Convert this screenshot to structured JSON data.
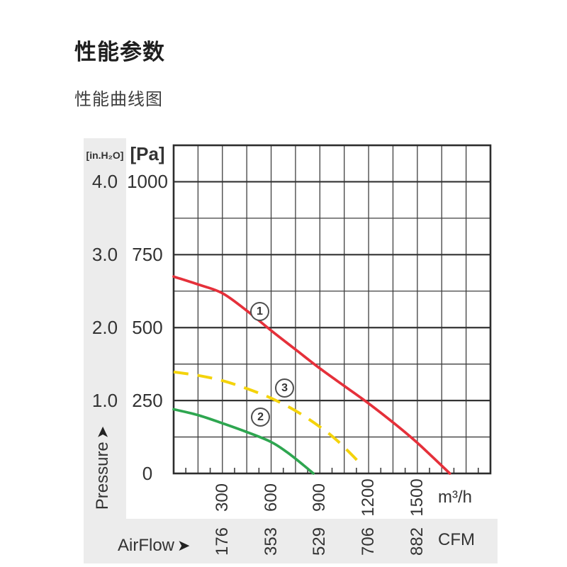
{
  "page": {
    "title": "性能参数",
    "subtitle": "性能曲线图"
  },
  "icons": {
    "right_arrow": "➤"
  },
  "chart_data": {
    "type": "line",
    "title": "性能曲线图",
    "grid": true,
    "x_axis": {
      "label": "AirFlow",
      "unit_primary": "m³/h",
      "unit_secondary": "CFM",
      "range": [
        0,
        1950
      ],
      "grid_step": 150,
      "ticks_primary": [
        "300",
        "600",
        "900",
        "1200",
        "1500"
      ],
      "ticks_primary_values": [
        300,
        600,
        900,
        1200,
        1500
      ],
      "ticks_secondary": [
        "176",
        "353",
        "529",
        "706",
        "882"
      ],
      "ticks_secondary_values": [
        176,
        353,
        529,
        706,
        882
      ]
    },
    "y_axis": {
      "label": "Pressure",
      "unit_primary": "[Pa]",
      "unit_secondary": "[in.H₂O]",
      "range": [
        0,
        1125
      ],
      "grid_step": 125,
      "ticks_primary": [
        "1000",
        "750",
        "500",
        "250",
        "0"
      ],
      "ticks_primary_values": [
        1000,
        750,
        500,
        250,
        0
      ],
      "ticks_secondary": [
        "4.0",
        "3.0",
        "2.0",
        "1.0"
      ],
      "ticks_secondary_values": [
        4.0,
        3.0,
        2.0,
        1.0
      ]
    },
    "series": [
      {
        "name": "1",
        "color": "#e5303a",
        "style": "solid",
        "points": [
          [
            0,
            675
          ],
          [
            150,
            648
          ],
          [
            300,
            618
          ],
          [
            450,
            558
          ],
          [
            600,
            490
          ],
          [
            750,
            425
          ],
          [
            900,
            360
          ],
          [
            1050,
            300
          ],
          [
            1200,
            240
          ],
          [
            1350,
            175
          ],
          [
            1500,
            105
          ],
          [
            1700,
            0
          ]
        ],
        "label_pos": [
          530,
          555
        ]
      },
      {
        "name": "2",
        "color": "#2ea650",
        "style": "solid",
        "points": [
          [
            0,
            220
          ],
          [
            150,
            200
          ],
          [
            300,
            172
          ],
          [
            450,
            142
          ],
          [
            600,
            108
          ],
          [
            700,
            72
          ],
          [
            800,
            28
          ],
          [
            860,
            0
          ]
        ],
        "label_pos": [
          535,
          192
        ]
      },
      {
        "name": "3",
        "color": "#f4d30b",
        "style": "dashed",
        "points": [
          [
            0,
            348
          ],
          [
            150,
            336
          ],
          [
            300,
            318
          ],
          [
            450,
            291
          ],
          [
            600,
            258
          ],
          [
            750,
            215
          ],
          [
            900,
            160
          ],
          [
            1000,
            116
          ],
          [
            1100,
            62
          ],
          [
            1150,
            32
          ]
        ],
        "label_pos": [
          683,
          292
        ]
      }
    ],
    "colors": {
      "grid_minor": "#3f3f3f",
      "grid_major": "#333333",
      "border": "#2d2d2d",
      "panel_gray": "#ececec"
    }
  }
}
